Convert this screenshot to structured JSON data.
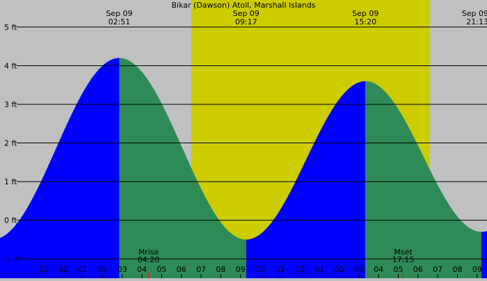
{
  "chart_data": {
    "type": "area",
    "title": "Bikar (Dawson) Atoll, Marshall Islands",
    "y_unit": "ft",
    "ylim": [
      -1.5,
      5.7
    ],
    "y_ticks": [
      {
        "value": 5,
        "label": "5 ft"
      },
      {
        "value": 4,
        "label": "4 ft"
      },
      {
        "value": 3,
        "label": "3 ft"
      },
      {
        "value": 2,
        "label": "2 ft"
      },
      {
        "value": 1,
        "label": "1 ft"
      },
      {
        "value": 0,
        "label": "0 ft"
      },
      {
        "value": -1,
        "label": "-1 ft"
      }
    ],
    "x_range_hours": [
      -3.2,
      21.5
    ],
    "x_ticks": [
      {
        "hour": -1,
        "label": "11"
      },
      {
        "hour": 0,
        "label": "12"
      },
      {
        "hour": 1,
        "label": "01"
      },
      {
        "hour": 2,
        "label": "02"
      },
      {
        "hour": 3,
        "label": "03"
      },
      {
        "hour": 4,
        "label": "04"
      },
      {
        "hour": 5,
        "label": "05"
      },
      {
        "hour": 6,
        "label": "06"
      },
      {
        "hour": 7,
        "label": "07"
      },
      {
        "hour": 8,
        "label": "08"
      },
      {
        "hour": 9,
        "label": "09"
      },
      {
        "hour": 10,
        "label": "10"
      },
      {
        "hour": 11,
        "label": "11"
      },
      {
        "hour": 12,
        "label": "12"
      },
      {
        "hour": 13,
        "label": "01"
      },
      {
        "hour": 14,
        "label": "02"
      },
      {
        "hour": 15,
        "label": "03"
      },
      {
        "hour": 16,
        "label": "04"
      },
      {
        "hour": 17,
        "label": "05"
      },
      {
        "hour": 18,
        "label": "06"
      },
      {
        "hour": 19,
        "label": "07"
      },
      {
        "hour": 20,
        "label": "08"
      },
      {
        "hour": 21,
        "label": "09"
      }
    ],
    "extremes": [
      {
        "type": "high",
        "date": "Sep 09",
        "time": "02:51",
        "hour": 2.85,
        "height": 4.2
      },
      {
        "type": "low",
        "date": "Sep 09",
        "time": "09:17",
        "hour": 9.283,
        "height": -0.5
      },
      {
        "type": "high",
        "date": "Sep 09",
        "time": "15:20",
        "hour": 15.333,
        "height": 3.6
      },
      {
        "type": "low",
        "date": "Sep 09",
        "time": "21:13",
        "hour": 21.217,
        "height": -0.3
      }
    ],
    "daylight_hours": [
      6.5,
      18.6
    ],
    "moon_events": [
      {
        "label": "Mrise",
        "time": "04:20",
        "hour": 4.333
      },
      {
        "label": "Mset",
        "time": "17:15",
        "hour": 17.25
      }
    ],
    "colors": {
      "night": "#c0c0c0",
      "day": "#cccc00",
      "rising": "#0000ff",
      "falling": "#2e8b57",
      "grid": "#000000",
      "moon_tick": "#ff0000"
    }
  }
}
